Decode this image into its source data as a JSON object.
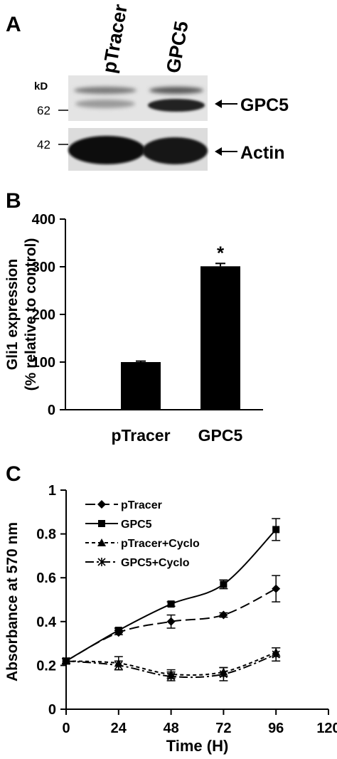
{
  "panels": {
    "a_label": "A",
    "b_label": "B",
    "c_label": "C"
  },
  "blot": {
    "lanes": [
      "pTracer",
      "GPC5"
    ],
    "kd_label": "kD",
    "markers": [
      "62",
      "42"
    ],
    "bands": [
      "GPC5",
      "Actin"
    ]
  },
  "chart_data": [
    {
      "type": "bar",
      "categories": [
        "pTracer",
        "GPC5"
      ],
      "values": [
        100,
        301
      ],
      "errors": [
        2,
        6
      ],
      "annotations": [
        "",
        "*"
      ],
      "title": "",
      "xlabel": "",
      "ylabel": "Gli1 expression",
      "ylabel2": "(% relative to control)",
      "ylim": [
        0,
        400
      ],
      "yticks": [
        "0",
        "100",
        "200",
        "300",
        "400"
      ],
      "color": "#000000"
    },
    {
      "type": "line",
      "x": [
        0,
        24,
        48,
        72,
        96
      ],
      "xlim": [
        0,
        120
      ],
      "xticks": [
        "0",
        "24",
        "48",
        "72",
        "96",
        "120"
      ],
      "ylim": [
        0,
        1
      ],
      "yticks": [
        "0",
        "0.2",
        "0.4",
        "0.6",
        "0.8",
        "1"
      ],
      "xlabel": "Time (H)",
      "ylabel": "Absorbance at 570 nm",
      "legend_position": "top-left",
      "series": [
        {
          "name": "pTracer",
          "values": [
            0.22,
            0.35,
            0.4,
            0.43,
            0.55
          ],
          "errors": [
            0.01,
            0.01,
            0.03,
            0.01,
            0.06
          ],
          "marker": "diamond",
          "dash": "long-dash"
        },
        {
          "name": "GPC5",
          "values": [
            0.22,
            0.36,
            0.48,
            0.57,
            0.82
          ],
          "errors": [
            0.01,
            0.01,
            0.01,
            0.02,
            0.05
          ],
          "marker": "square",
          "dash": "solid"
        },
        {
          "name": "pTracer+Cyclo",
          "values": [
            0.22,
            0.21,
            0.16,
            0.17,
            0.26
          ],
          "errors": [
            0.01,
            0.03,
            0.02,
            0.02,
            0.02
          ],
          "marker": "triangle",
          "dash": "short-dash"
        },
        {
          "name": "GPC5+Cyclo",
          "values": [
            0.22,
            0.2,
            0.15,
            0.16,
            0.25
          ],
          "errors": [
            0.01,
            0.02,
            0.02,
            0.03,
            0.03
          ],
          "marker": "star",
          "dash": "dash-dot"
        }
      ]
    }
  ]
}
